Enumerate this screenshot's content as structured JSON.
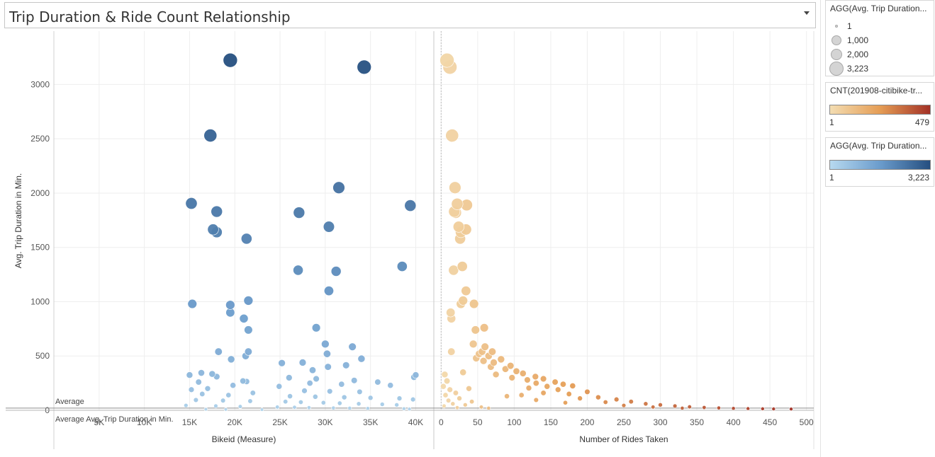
{
  "title": "Trip Duration & Ride Count Relationship",
  "colors": {
    "blue_low": "#b7d9ef",
    "blue_high": "#254f80",
    "orange_low": "#f3ddb2",
    "orange_mid": "#e59d55",
    "orange_high": "#a33126",
    "gridline": "#eeeeee",
    "reference_line": "#8c8c8c"
  },
  "legends": {
    "size": {
      "title": "AGG(Avg. Trip Duration...",
      "items": [
        {
          "label": "1",
          "value": 1
        },
        {
          "label": "1,000",
          "value": 1000
        },
        {
          "label": "2,000",
          "value": 2000
        },
        {
          "label": "3,223",
          "value": 3223
        }
      ]
    },
    "count_color": {
      "title": "CNT(201908-citibike-tr...",
      "min": "1",
      "max": "479"
    },
    "duration_color": {
      "title": "AGG(Avg. Trip Duration...",
      "min": "1",
      "max": "3,223"
    }
  },
  "chart_data": [
    {
      "type": "scatter",
      "xlabel": "Bikeid (Measure)",
      "ylabel": "Avg. Trip Duration in Min.",
      "xlim": [
        0,
        42000
      ],
      "ylim": [
        0,
        3400
      ],
      "x_ticks": [
        5000,
        10000,
        15000,
        20000,
        25000,
        30000,
        35000,
        40000
      ],
      "x_tick_labels": [
        "5K",
        "10K",
        "15K",
        "20K",
        "25K",
        "30K",
        "35K",
        "40K"
      ],
      "y_ticks": [
        0,
        500,
        1000,
        1500,
        2000,
        2500,
        3000
      ],
      "y_tick_labels": [
        "0",
        "500",
        "1000",
        "1500",
        "2000",
        "2500",
        "3000"
      ],
      "reference_line": {
        "value": 20,
        "label_top": "Average",
        "label_bottom": "Average Avg. Trip Duration in Min."
      },
      "points": [
        {
          "x": 19500,
          "y": 3223
        },
        {
          "x": 34300,
          "y": 3160
        },
        {
          "x": 17300,
          "y": 2530
        },
        {
          "x": 31500,
          "y": 2050
        },
        {
          "x": 15200,
          "y": 1905
        },
        {
          "x": 39400,
          "y": 1885
        },
        {
          "x": 18000,
          "y": 1830
        },
        {
          "x": 27100,
          "y": 1820
        },
        {
          "x": 30400,
          "y": 1690
        },
        {
          "x": 17600,
          "y": 1665
        },
        {
          "x": 18000,
          "y": 1640
        },
        {
          "x": 21300,
          "y": 1580
        },
        {
          "x": 38500,
          "y": 1325
        },
        {
          "x": 27000,
          "y": 1290
        },
        {
          "x": 31200,
          "y": 1280
        },
        {
          "x": 30400,
          "y": 1100
        },
        {
          "x": 21500,
          "y": 1010
        },
        {
          "x": 15300,
          "y": 980
        },
        {
          "x": 19500,
          "y": 970
        },
        {
          "x": 19500,
          "y": 900
        },
        {
          "x": 21000,
          "y": 845
        },
        {
          "x": 29000,
          "y": 760
        },
        {
          "x": 21500,
          "y": 740
        },
        {
          "x": 30000,
          "y": 610
        },
        {
          "x": 33000,
          "y": 585
        },
        {
          "x": 18200,
          "y": 540
        },
        {
          "x": 21500,
          "y": 540
        },
        {
          "x": 30200,
          "y": 520
        },
        {
          "x": 21200,
          "y": 500
        },
        {
          "x": 34000,
          "y": 475
        },
        {
          "x": 19600,
          "y": 470
        },
        {
          "x": 27500,
          "y": 440
        },
        {
          "x": 25200,
          "y": 435
        },
        {
          "x": 32300,
          "y": 415
        },
        {
          "x": 30300,
          "y": 400
        },
        {
          "x": 28600,
          "y": 370
        },
        {
          "x": 16300,
          "y": 345
        },
        {
          "x": 17500,
          "y": 335
        },
        {
          "x": 15000,
          "y": 325
        },
        {
          "x": 40000,
          "y": 325
        },
        {
          "x": 18000,
          "y": 310
        },
        {
          "x": 39800,
          "y": 305
        },
        {
          "x": 26000,
          "y": 300
        },
        {
          "x": 29000,
          "y": 290
        },
        {
          "x": 33200,
          "y": 275
        },
        {
          "x": 20900,
          "y": 270
        },
        {
          "x": 16000,
          "y": 260
        },
        {
          "x": 35800,
          "y": 260
        },
        {
          "x": 21300,
          "y": 265
        },
        {
          "x": 28300,
          "y": 250
        },
        {
          "x": 31800,
          "y": 240
        },
        {
          "x": 19800,
          "y": 230
        },
        {
          "x": 24900,
          "y": 220
        },
        {
          "x": 37200,
          "y": 230
        },
        {
          "x": 17000,
          "y": 200
        },
        {
          "x": 15200,
          "y": 190
        },
        {
          "x": 27700,
          "y": 180
        },
        {
          "x": 30500,
          "y": 175
        },
        {
          "x": 33800,
          "y": 170
        },
        {
          "x": 22000,
          "y": 160
        },
        {
          "x": 16400,
          "y": 150
        },
        {
          "x": 19300,
          "y": 140
        },
        {
          "x": 26100,
          "y": 130
        },
        {
          "x": 28900,
          "y": 125
        },
        {
          "x": 32100,
          "y": 120
        },
        {
          "x": 35000,
          "y": 115
        },
        {
          "x": 38200,
          "y": 110
        },
        {
          "x": 39700,
          "y": 100
        },
        {
          "x": 15700,
          "y": 95
        },
        {
          "x": 18700,
          "y": 90
        },
        {
          "x": 21700,
          "y": 85
        },
        {
          "x": 25600,
          "y": 80
        },
        {
          "x": 27300,
          "y": 75
        },
        {
          "x": 29800,
          "y": 70
        },
        {
          "x": 31600,
          "y": 65
        },
        {
          "x": 33700,
          "y": 60
        },
        {
          "x": 36300,
          "y": 55
        },
        {
          "x": 37900,
          "y": 50
        },
        {
          "x": 14600,
          "y": 45
        },
        {
          "x": 17900,
          "y": 40
        },
        {
          "x": 20600,
          "y": 35
        },
        {
          "x": 24700,
          "y": 30
        },
        {
          "x": 26600,
          "y": 28
        },
        {
          "x": 28200,
          "y": 25
        },
        {
          "x": 30900,
          "y": 22
        },
        {
          "x": 32700,
          "y": 20
        },
        {
          "x": 34700,
          "y": 18
        },
        {
          "x": 38700,
          "y": 15
        },
        {
          "x": 39300,
          "y": 12
        },
        {
          "x": 16800,
          "y": 10
        },
        {
          "x": 19000,
          "y": 8
        },
        {
          "x": 23000,
          "y": 6
        }
      ]
    },
    {
      "type": "scatter",
      "xlabel": "Number of Rides Taken",
      "ylabel": "",
      "xlim": [
        -10,
        510
      ],
      "ylim": [
        0,
        3400
      ],
      "x_ticks": [
        0,
        50,
        100,
        150,
        200,
        250,
        300,
        350,
        400,
        450,
        500
      ],
      "x_tick_labels": [
        "0",
        "50",
        "100",
        "150",
        "200",
        "250",
        "300",
        "350",
        "400",
        "450",
        "500"
      ],
      "reference_line": {
        "value": 20
      },
      "points": [
        {
          "x": 8,
          "y": 3223
        },
        {
          "x": 12,
          "y": 3160
        },
        {
          "x": 15,
          "y": 2530
        },
        {
          "x": 19,
          "y": 2050
        },
        {
          "x": 22,
          "y": 1900
        },
        {
          "x": 35,
          "y": 1890
        },
        {
          "x": 18,
          "y": 1830
        },
        {
          "x": 20,
          "y": 1820
        },
        {
          "x": 24,
          "y": 1690
        },
        {
          "x": 34,
          "y": 1665
        },
        {
          "x": 27,
          "y": 1640
        },
        {
          "x": 26,
          "y": 1580
        },
        {
          "x": 29,
          "y": 1325
        },
        {
          "x": 17,
          "y": 1290
        },
        {
          "x": 34,
          "y": 1100
        },
        {
          "x": 30,
          "y": 1010
        },
        {
          "x": 27,
          "y": 980
        },
        {
          "x": 45,
          "y": 980
        },
        {
          "x": 13,
          "y": 900
        },
        {
          "x": 14,
          "y": 845
        },
        {
          "x": 59,
          "y": 760
        },
        {
          "x": 47,
          "y": 740
        },
        {
          "x": 44,
          "y": 610
        },
        {
          "x": 60,
          "y": 585
        },
        {
          "x": 56,
          "y": 540
        },
        {
          "x": 14,
          "y": 540
        },
        {
          "x": 70,
          "y": 540
        },
        {
          "x": 52,
          "y": 520
        },
        {
          "x": 65,
          "y": 500
        },
        {
          "x": 48,
          "y": 480
        },
        {
          "x": 82,
          "y": 470
        },
        {
          "x": 58,
          "y": 455
        },
        {
          "x": 72,
          "y": 440
        },
        {
          "x": 95,
          "y": 410
        },
        {
          "x": 68,
          "y": 400
        },
        {
          "x": 88,
          "y": 380
        },
        {
          "x": 103,
          "y": 360
        },
        {
          "x": 112,
          "y": 340
        },
        {
          "x": 75,
          "y": 330
        },
        {
          "x": 129,
          "y": 310
        },
        {
          "x": 97,
          "y": 300
        },
        {
          "x": 140,
          "y": 290
        },
        {
          "x": 118,
          "y": 280
        },
        {
          "x": 156,
          "y": 260
        },
        {
          "x": 130,
          "y": 250
        },
        {
          "x": 167,
          "y": 240
        },
        {
          "x": 180,
          "y": 225
        },
        {
          "x": 145,
          "y": 220
        },
        {
          "x": 120,
          "y": 205
        },
        {
          "x": 160,
          "y": 190
        },
        {
          "x": 200,
          "y": 170
        },
        {
          "x": 140,
          "y": 160
        },
        {
          "x": 175,
          "y": 150
        },
        {
          "x": 110,
          "y": 140
        },
        {
          "x": 90,
          "y": 130
        },
        {
          "x": 215,
          "y": 120
        },
        {
          "x": 190,
          "y": 110
        },
        {
          "x": 240,
          "y": 100
        },
        {
          "x": 130,
          "y": 95
        },
        {
          "x": 260,
          "y": 80
        },
        {
          "x": 225,
          "y": 75
        },
        {
          "x": 170,
          "y": 70
        },
        {
          "x": 280,
          "y": 60
        },
        {
          "x": 300,
          "y": 50
        },
        {
          "x": 250,
          "y": 45
        },
        {
          "x": 320,
          "y": 40
        },
        {
          "x": 340,
          "y": 32
        },
        {
          "x": 290,
          "y": 30
        },
        {
          "x": 360,
          "y": 26
        },
        {
          "x": 380,
          "y": 22
        },
        {
          "x": 330,
          "y": 20
        },
        {
          "x": 400,
          "y": 18
        },
        {
          "x": 420,
          "y": 16
        },
        {
          "x": 440,
          "y": 14
        },
        {
          "x": 455,
          "y": 13
        },
        {
          "x": 479,
          "y": 12
        },
        {
          "x": 30,
          "y": 350
        },
        {
          "x": 5,
          "y": 330
        },
        {
          "x": 8,
          "y": 270
        },
        {
          "x": 3,
          "y": 220
        },
        {
          "x": 12,
          "y": 190
        },
        {
          "x": 20,
          "y": 160
        },
        {
          "x": 6,
          "y": 140
        },
        {
          "x": 38,
          "y": 200
        },
        {
          "x": 25,
          "y": 110
        },
        {
          "x": 10,
          "y": 90
        },
        {
          "x": 42,
          "y": 80
        },
        {
          "x": 16,
          "y": 60
        },
        {
          "x": 33,
          "y": 50
        },
        {
          "x": 4,
          "y": 40
        },
        {
          "x": 55,
          "y": 30
        },
        {
          "x": 22,
          "y": 25
        },
        {
          "x": 65,
          "y": 20
        }
      ]
    }
  ]
}
